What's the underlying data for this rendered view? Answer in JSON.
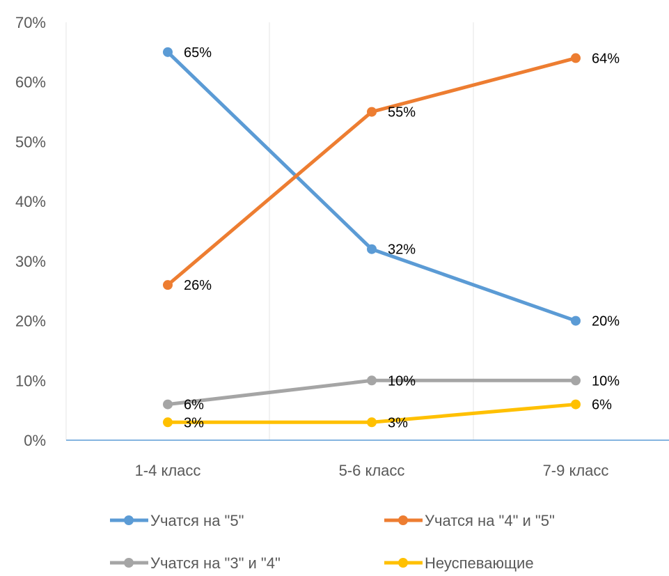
{
  "chart_data": {
    "type": "line",
    "categories": [
      "1-4 класс",
      "5-6 класс",
      "7-9 класс"
    ],
    "ylim": [
      0,
      70
    ],
    "yticks": [
      0,
      10,
      20,
      30,
      40,
      50,
      60,
      70
    ],
    "ytick_labels": [
      "0%",
      "10%",
      "20%",
      "30%",
      "40%",
      "50%",
      "60%",
      "70%"
    ],
    "grid": true,
    "legend_position": "bottom",
    "series": [
      {
        "name": "Учатся на \"5\"",
        "values": [
          65,
          32,
          20
        ],
        "labels": [
          "65%",
          "32%",
          "20%"
        ],
        "color": "#5B9BD5"
      },
      {
        "name": "Учатся на \"4\" и \"5\"",
        "values": [
          26,
          55,
          64
        ],
        "labels": [
          "26%",
          "55%",
          "64%"
        ],
        "color": "#ED7D31"
      },
      {
        "name": "Учатся на \"3\" и \"4\"",
        "values": [
          6,
          10,
          10
        ],
        "labels": [
          "6%",
          "10%",
          "10%"
        ],
        "color": "#A5A5A5"
      },
      {
        "name": "Неуспевающие",
        "values": [
          3,
          3,
          6
        ],
        "labels": [
          "3%",
          "3%",
          "6%"
        ],
        "color": "#FFC000"
      }
    ]
  }
}
